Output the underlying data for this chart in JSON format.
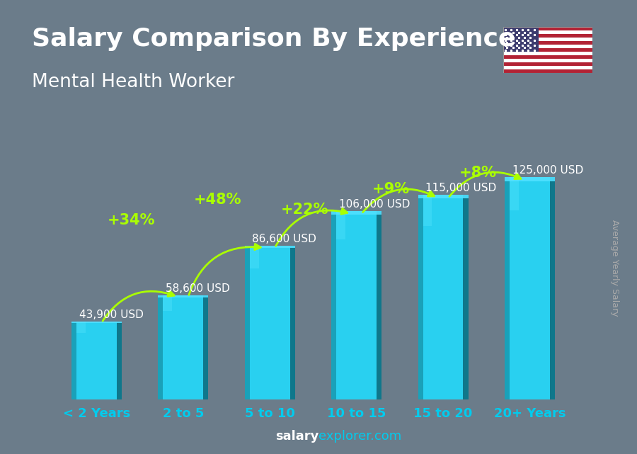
{
  "title": "Salary Comparison By Experience",
  "subtitle": "Mental Health Worker",
  "ylabel": "Average Yearly Salary",
  "footer_bold": "salary",
  "footer_regular": "explorer.com",
  "categories": [
    "< 2 Years",
    "2 to 5",
    "5 to 10",
    "10 to 15",
    "15 to 20",
    "20+ Years"
  ],
  "values": [
    43900,
    58600,
    86600,
    106000,
    115000,
    125000
  ],
  "value_labels": [
    "43,900 USD",
    "58,600 USD",
    "86,600 USD",
    "106,000 USD",
    "115,000 USD",
    "125,000 USD"
  ],
  "pct_changes": [
    "+34%",
    "+48%",
    "+22%",
    "+9%",
    "+8%"
  ],
  "bar_face_color": "#29d0f0",
  "bar_left_color": "#1899b0",
  "bar_right_color": "#0d6e80",
  "bar_top_color": "#50e0ff",
  "bg_color": "#6b7c8a",
  "overlay_color": "#4a5a6a",
  "title_color": "#ffffff",
  "subtitle_color": "#ffffff",
  "value_label_color": "#ffffff",
  "pct_color": "#aaff00",
  "arrow_color": "#aaff00",
  "xlabel_color": "#00ccee",
  "ylabel_color": "#aaaaaa",
  "footer_bold_color": "#ffffff",
  "footer_regular_color": "#00ccee",
  "ylim": [
    0,
    148000
  ],
  "title_fontsize": 26,
  "subtitle_fontsize": 19,
  "value_label_fontsize": 11,
  "pct_fontsize": 15,
  "xlabel_fontsize": 13,
  "ylabel_fontsize": 9,
  "footer_fontsize": 13
}
